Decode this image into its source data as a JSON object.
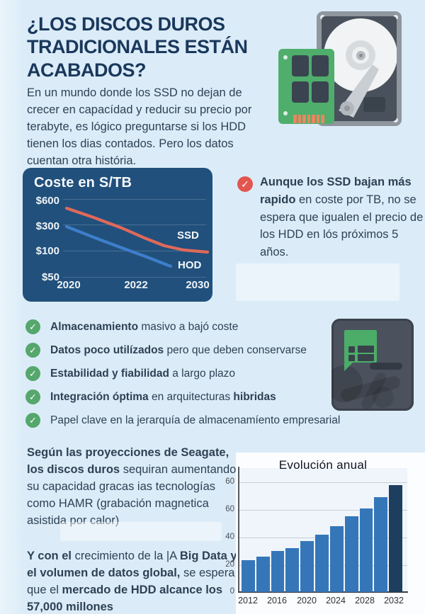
{
  "icons": {
    "check": "✓"
  },
  "header": {
    "title": "¿LOS DISCOS DUROS TRADICIONALES ESTÁN ACABADOS?",
    "intro": "En un mundo donde los SSD no dejan de crecer en capacídad y reducir su precio por terabyte, es lógico preguntarse si los HDD tienen los dias contados. Pero los datos cuentan otra história."
  },
  "ssd_note": {
    "bold": "Aunque los SSD bajan más rapido",
    "rest": " en coste por TB, no se espera que igualen el precio de los HDD en lós próximos 5 años."
  },
  "checklist": {
    "items": [
      {
        "bold": "Almacenamiento",
        "text": " masivo a bajó coste",
        "bold2": ""
      },
      {
        "bold": "Datos poco utilízados",
        "text": " pero que deben conservarse",
        "bold2": ""
      },
      {
        "bold": "Estabilidad y fiabilidad",
        "text": " a largo plazo",
        "bold2": ""
      },
      {
        "bold": "Integración óptima",
        "text": " en arquitecturas ",
        "bold2": "hibridas"
      },
      {
        "bold": "",
        "text": "Papel clave en la jerarquía de almacenamíento empresarial",
        "bold2": ""
      }
    ]
  },
  "projections": {
    "p1_bold": "Según las proyecciones de Seagate, los discos duros",
    "p1_rest": " sequiran aumentando su capacidad gracas ias tecnologías como HAMR (grabación magnetica asistida por calor)",
    "p2_b1": "Y con el ",
    "p2_r1": "crecimiento de la |A ",
    "p2_b2": "Big Data y el volumen de datos global, ",
    "p2_r2": "se espera que el ",
    "p2_b3": "mercado de HDD alcance los 57,000 millones"
  },
  "colors": {
    "background": "#dbecf8",
    "title_navy": "#1a385c",
    "chart_box_navy": "#21507c",
    "ssd_line": "#e0695a",
    "hdd_line": "#3e7ecb",
    "green_check": "#55a76b",
    "red_check": "#e2564f",
    "bar_blue": "#3576b9",
    "bar_dark": "#1d3e5e"
  },
  "chart_data": [
    {
      "type": "line",
      "title": "Coste en S/TB",
      "x_ticks": [
        "2020",
        "2022",
        "2030"
      ],
      "y_ticks": [
        "$600",
        "$300",
        "$100",
        "$50"
      ],
      "grid": true,
      "legend_position": "inline-right",
      "series": [
        {
          "name": "SSD",
          "color": "#e0695a",
          "approx_usd_per_tb": [
            500,
            400,
            300,
            210,
            150,
            120,
            95
          ],
          "points": [
            [
              62,
              57
            ],
            [
              100,
              70
            ],
            [
              140,
              85
            ],
            [
              172,
              99
            ],
            [
              200,
              110
            ],
            [
              227,
              116
            ],
            [
              261,
              119
            ]
          ]
        },
        {
          "name": "HOD",
          "color": "#3e7ecb",
          "approx_usd_per_tb": [
            300,
            235,
            175,
            120,
            75
          ],
          "points": [
            [
              62,
              83
            ],
            [
              100,
              98
            ],
            [
              140,
              113
            ],
            [
              173,
              125
            ],
            [
              209,
              139
            ]
          ]
        }
      ]
    },
    {
      "type": "bar",
      "title": "Evolución anual",
      "categories": [
        "2012",
        "2014",
        "2016",
        "2018",
        "2020",
        "2022",
        "2024",
        "2026",
        "2028",
        "2030",
        "2032"
      ],
      "values": [
        23,
        26,
        30,
        32,
        37,
        42,
        48,
        55,
        61,
        69,
        78
      ],
      "x_tick_labels": [
        "2012",
        "2016",
        "2020",
        "2024",
        "2028",
        "2032"
      ],
      "y_tick_labels_top_to_bottom": [
        "60",
        "60",
        "40",
        "20",
        "0"
      ],
      "ylim": [
        0,
        80
      ],
      "grid": true,
      "bar_color": "#3576b9",
      "last_bar_color": "#1d3e5e"
    }
  ]
}
